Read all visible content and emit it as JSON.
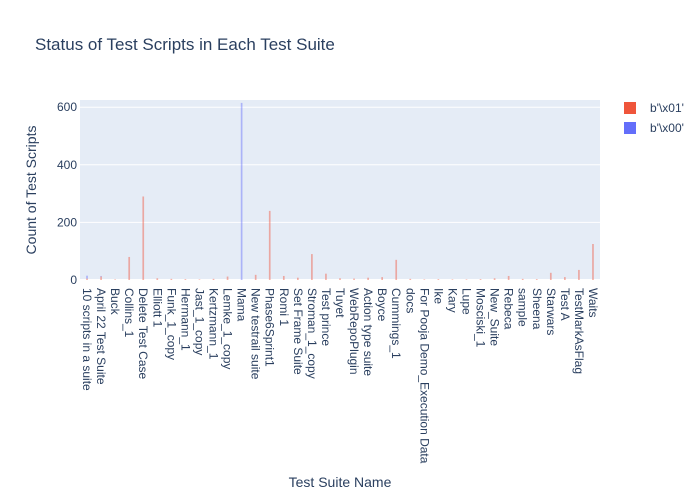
{
  "chart_data": {
    "type": "bar",
    "barmode": "stack",
    "title": "Status of Test Scripts in Each Test Suite",
    "xlabel": "Test Suite Name",
    "ylabel": "Count of Test Scripts",
    "ylim": [
      0,
      625
    ],
    "yticks": [
      0,
      200,
      400,
      600
    ],
    "grid": true,
    "legend_position": "top-right",
    "categories": [
      "10 scripts in a suite",
      "April 22 Test Suite",
      "Buck",
      "Collins_1",
      "Delete Test Case",
      "Elliott 1",
      "Funk_1_copy",
      "Hermann_1",
      "Jast_1_copy",
      "Kertzmann_1",
      "Lemke_1_copy",
      "Mama",
      "New testrail suite",
      "Phase6Sprint1",
      "Romi 1",
      "Set Frame Suite",
      "Stroman_1_copy",
      "Test prince",
      "Tuyet",
      "WebRepoPlugin",
      "Action type suite",
      "Boyce",
      "Cummings_1",
      "docs",
      "For Pooja Demo_Execution Data",
      "Ike",
      "Kary",
      "Lupe",
      "Mosciski_1",
      "New_Suite",
      "Rebeca",
      "sample",
      "Sheena",
      "Starwars",
      "Test A",
      "TestMarkAsFlag",
      "Waits"
    ],
    "series": [
      {
        "name": "b'\\x01'",
        "color": "#EF553B",
        "values": [
          5,
          12,
          2,
          80,
          290,
          6,
          4,
          3,
          2,
          4,
          12,
          0,
          18,
          240,
          14,
          8,
          90,
          22,
          6,
          5,
          8,
          10,
          70,
          4,
          2,
          3,
          2,
          2,
          3,
          6,
          14,
          4,
          3,
          25,
          10,
          35,
          125
        ]
      },
      {
        "name": "b'\\x00'",
        "color": "#636EFA",
        "values": [
          10,
          2,
          0,
          0,
          0,
          0,
          0,
          0,
          0,
          0,
          0,
          615,
          0,
          0,
          0,
          0,
          0,
          0,
          0,
          0,
          0,
          0,
          0,
          0,
          0,
          0,
          0,
          0,
          0,
          0,
          0,
          0,
          0,
          0,
          0,
          0,
          0
        ]
      }
    ]
  }
}
